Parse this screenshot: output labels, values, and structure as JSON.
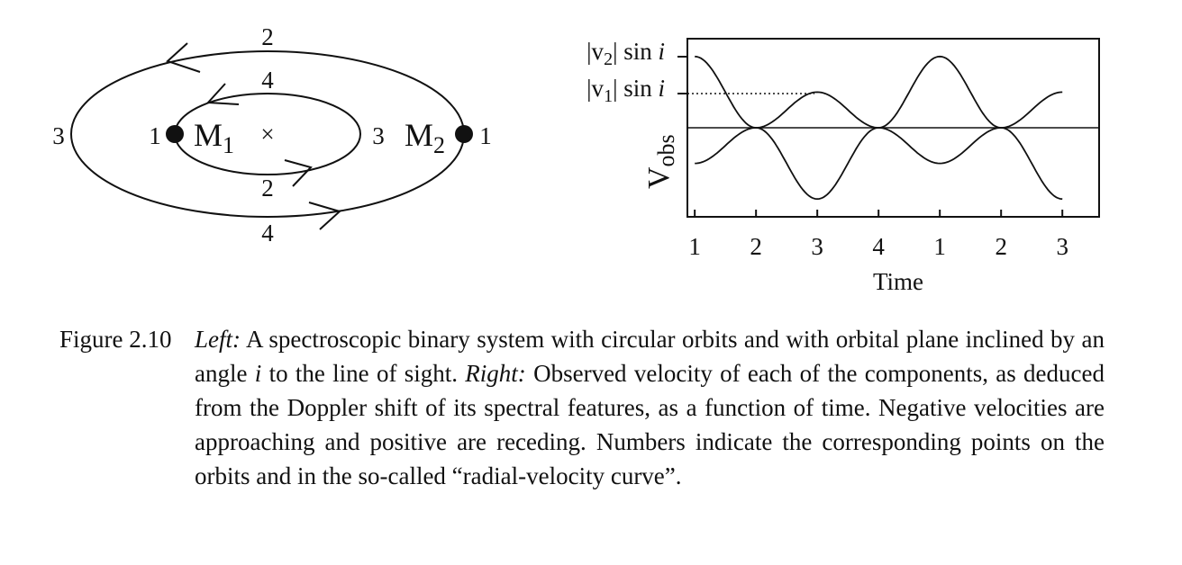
{
  "diagram": {
    "outer_labels": [
      "2",
      "3",
      "4",
      "1"
    ],
    "inner_labels": [
      "4",
      "1",
      "3",
      "2"
    ],
    "m1": {
      "letter": "M",
      "subscript": "1"
    },
    "m2": {
      "letter": "M",
      "subscript": "2"
    },
    "center_mark": "×"
  },
  "chart_data": {
    "type": "line",
    "xlabel": "Time",
    "ylabel": "V",
    "ylabel_sub": "obs",
    "x_tick_labels": [
      "1",
      "2",
      "3",
      "4",
      "1",
      "2",
      "3"
    ],
    "y_marks": [
      {
        "abs_open": "|v",
        "sub": "2",
        "abs_close": "| sin ",
        "var": "i",
        "value": 1.0
      },
      {
        "abs_open": "|v",
        "sub": "1",
        "abs_close": "| sin ",
        "var": "i",
        "value": 0.5
      }
    ],
    "x": [
      0,
      1,
      2,
      3,
      4,
      5,
      6
    ],
    "series": [
      {
        "values": [
          1.0,
          0.0,
          -1.0,
          0.0,
          1.0,
          0.0,
          -1.0
        ]
      },
      {
        "values": [
          -0.5,
          0.0,
          0.5,
          0.0,
          -0.5,
          0.0,
          0.5
        ]
      }
    ],
    "xlim": [
      -0.12,
      6.6
    ],
    "ylim": [
      -1.25,
      1.25
    ],
    "grid": false
  },
  "caption": {
    "label": "Figure 2.10",
    "left_word": "Left:",
    "left_text": " A spectroscopic binary system with circular orbits and with orbital plane inclined by an angle ",
    "angle_var": "i",
    "mid_text": " to the line of sight. ",
    "right_word": "Right:",
    "right_text": " Observed velocity of each of the components, as deduced from the Doppler shift of its spectral features, as a function of time. Negative velocities are approaching and positive are receding. Numbers indicate the corresponding points on the orbits and in the so-called “radial-velocity curve”."
  }
}
